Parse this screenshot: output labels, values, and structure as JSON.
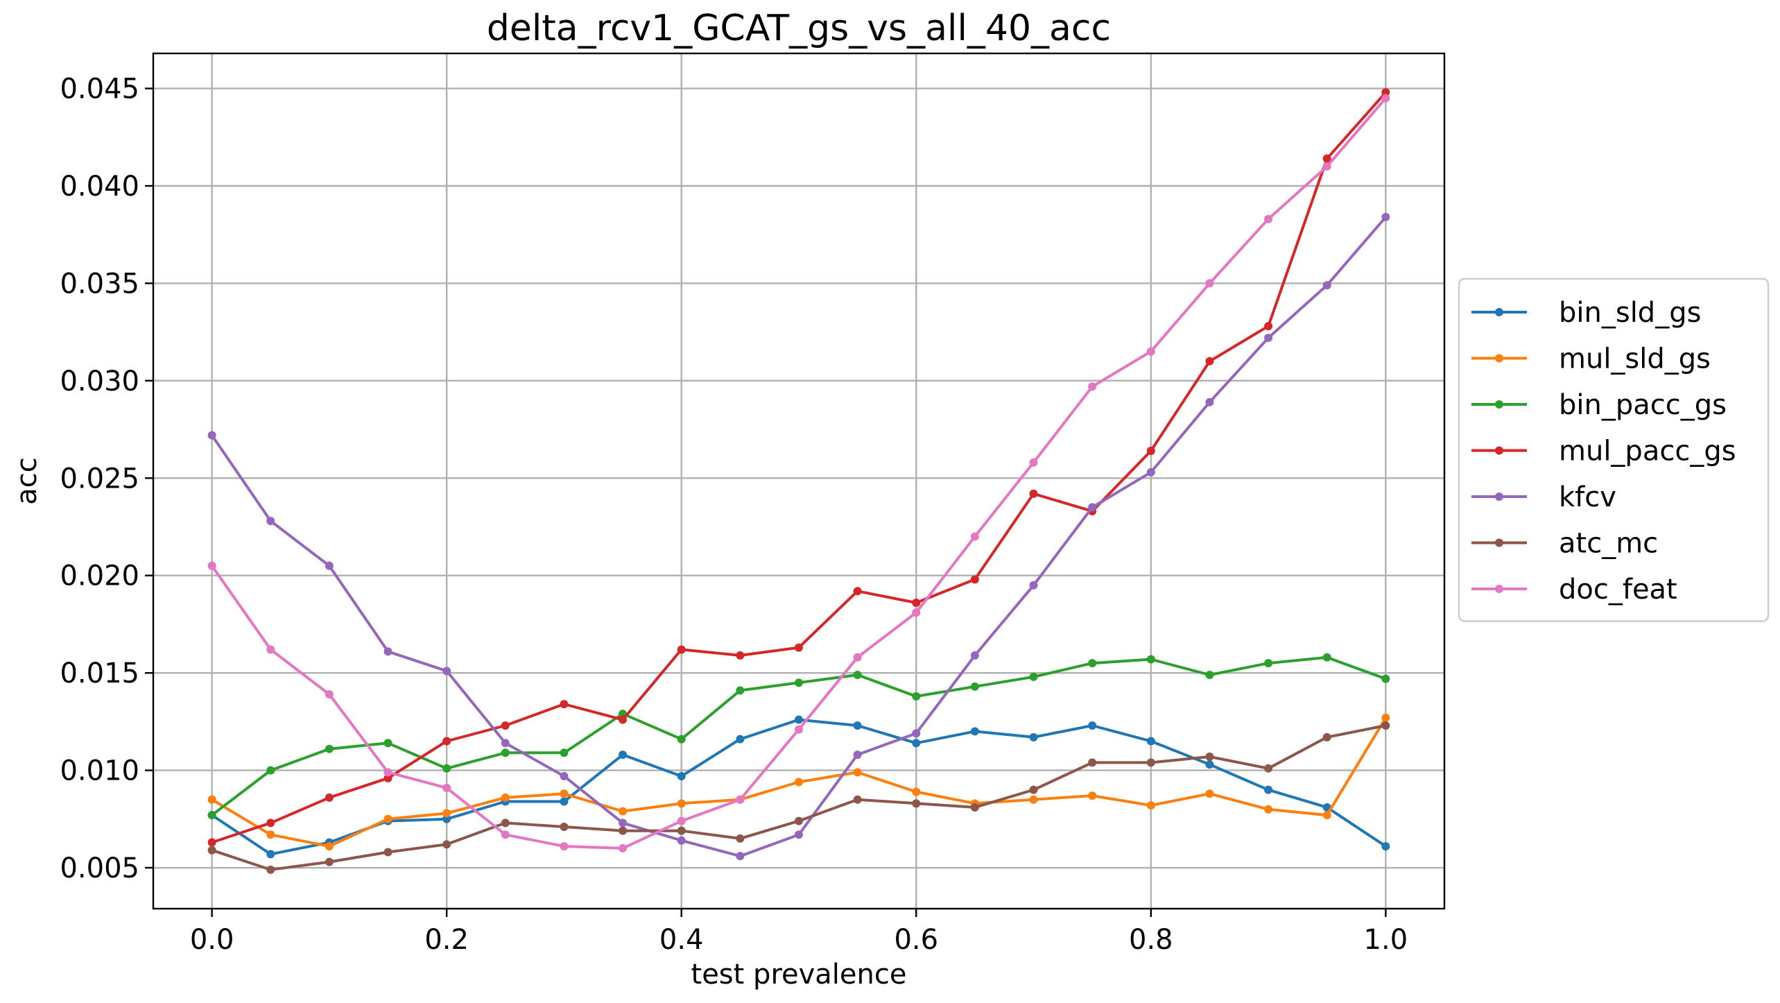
{
  "chart_data": {
    "type": "line",
    "title": "delta_rcv1_GCAT_gs_vs_all_40_acc",
    "xlabel": "test prevalence",
    "ylabel": "acc",
    "xlim": [
      -0.05,
      1.05
    ],
    "ylim": [
      0.0029,
      0.0468
    ],
    "x_ticks": [
      0.0,
      0.2,
      0.4,
      0.6,
      0.8,
      1.0
    ],
    "x_tick_labels": [
      "0.0",
      "0.2",
      "0.4",
      "0.6",
      "0.8",
      "1.0"
    ],
    "y_ticks": [
      0.005,
      0.01,
      0.015,
      0.02,
      0.025,
      0.03,
      0.035,
      0.04,
      0.045
    ],
    "y_tick_labels": [
      "0.005",
      "0.010",
      "0.015",
      "0.020",
      "0.025",
      "0.030",
      "0.035",
      "0.040",
      "0.045"
    ],
    "grid": true,
    "legend_position": "center-right-outside",
    "x": [
      0.0,
      0.05,
      0.1,
      0.15,
      0.2,
      0.25,
      0.3,
      0.35,
      0.4,
      0.45,
      0.5,
      0.55,
      0.6,
      0.65,
      0.7,
      0.75,
      0.8,
      0.85,
      0.9,
      0.95,
      1.0
    ],
    "series": [
      {
        "name": "bin_sld_gs",
        "color": "#1f77b4",
        "values": [
          0.0077,
          0.0057,
          0.0063,
          0.0074,
          0.0075,
          0.0084,
          0.0084,
          0.0108,
          0.0097,
          0.0116,
          0.0126,
          0.0123,
          0.0114,
          0.012,
          0.0117,
          0.0123,
          0.0115,
          0.0103,
          0.009,
          0.0081,
          0.0061
        ]
      },
      {
        "name": "mul_sld_gs",
        "color": "#ff7f0e",
        "values": [
          0.0085,
          0.0067,
          0.0061,
          0.0075,
          0.0078,
          0.0086,
          0.0088,
          0.0079,
          0.0083,
          0.0085,
          0.0094,
          0.0099,
          0.0089,
          0.0083,
          0.0085,
          0.0087,
          0.0082,
          0.0088,
          0.008,
          0.0077,
          0.0127
        ]
      },
      {
        "name": "bin_pacc_gs",
        "color": "#2ca02c",
        "values": [
          0.0077,
          0.01,
          0.0111,
          0.0114,
          0.0101,
          0.0109,
          0.0109,
          0.0129,
          0.0116,
          0.0141,
          0.0145,
          0.0149,
          0.0138,
          0.0143,
          0.0148,
          0.0155,
          0.0157,
          0.0149,
          0.0155,
          0.0158,
          0.0147
        ]
      },
      {
        "name": "mul_pacc_gs",
        "color": "#d62728",
        "values": [
          0.0063,
          0.0073,
          0.0086,
          0.0096,
          0.0115,
          0.0123,
          0.0134,
          0.0126,
          0.0162,
          0.0159,
          0.0163,
          0.0192,
          0.0186,
          0.0198,
          0.0242,
          0.0233,
          0.0264,
          0.031,
          0.0328,
          0.0414,
          0.0448
        ]
      },
      {
        "name": "kfcv",
        "color": "#9467bd",
        "values": [
          0.0272,
          0.0228,
          0.0205,
          0.0161,
          0.0151,
          0.0114,
          0.0097,
          0.0073,
          0.0064,
          0.0056,
          0.0067,
          0.0108,
          0.0119,
          0.0159,
          0.0195,
          0.0235,
          0.0253,
          0.0289,
          0.0322,
          0.0349,
          0.0384
        ]
      },
      {
        "name": "atc_mc",
        "color": "#8c564b",
        "values": [
          0.0059,
          0.0049,
          0.0053,
          0.0058,
          0.0062,
          0.0073,
          0.0071,
          0.0069,
          0.0069,
          0.0065,
          0.0074,
          0.0085,
          0.0083,
          0.0081,
          0.009,
          0.0104,
          0.0104,
          0.0107,
          0.0101,
          0.0117,
          0.0123
        ]
      },
      {
        "name": "doc_feat",
        "color": "#e377c2",
        "values": [
          0.0205,
          0.0162,
          0.0139,
          0.0099,
          0.0091,
          0.0067,
          0.0061,
          0.006,
          0.0074,
          0.0085,
          0.0121,
          0.0158,
          0.0181,
          0.022,
          0.0258,
          0.0297,
          0.0315,
          0.035,
          0.0383,
          0.041,
          0.0445
        ]
      }
    ]
  }
}
